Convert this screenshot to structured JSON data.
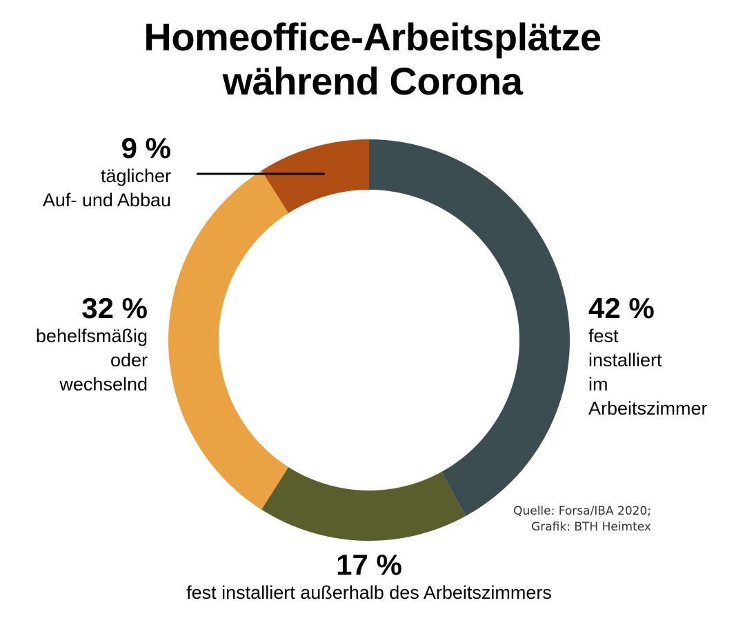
{
  "chart_data": {
    "type": "pie",
    "donut": true,
    "title": "Homeoffice-Arbeitsplätze während Corona",
    "title_lines": [
      "Homeoffice-Arbeitsplätze",
      "während Corona"
    ],
    "slices": [
      {
        "value": 42,
        "label": "42 %",
        "description": "fest installiert im Arbeitszimmer",
        "desc_lines": [
          "fest",
          "installiert",
          "im",
          "Arbeitszimmer"
        ],
        "color": "#3b4d50"
      },
      {
        "value": 17,
        "label": "17 %",
        "description": "fest installiert außerhalb des Arbeitszimmers",
        "desc_lines": [
          "fest installiert außerhalb des Arbeitszimmers"
        ],
        "color": "#5a5e2c"
      },
      {
        "value": 32,
        "label": "32 %",
        "description": "behelfsmäßig oder wechselnd",
        "desc_lines": [
          "behelfsmäßig",
          "oder",
          "wechselnd"
        ],
        "color": "#e9a342"
      },
      {
        "value": 9,
        "label": "9 %",
        "description": "täglicher Auf- und Abbau",
        "desc_lines": [
          "täglicher",
          "Auf- und Abbau"
        ],
        "color": "#b04e14"
      }
    ],
    "source_lines": [
      "Quelle: Forsa/IBA 2020;",
      "Grafik: BTH Heimtex"
    ]
  }
}
